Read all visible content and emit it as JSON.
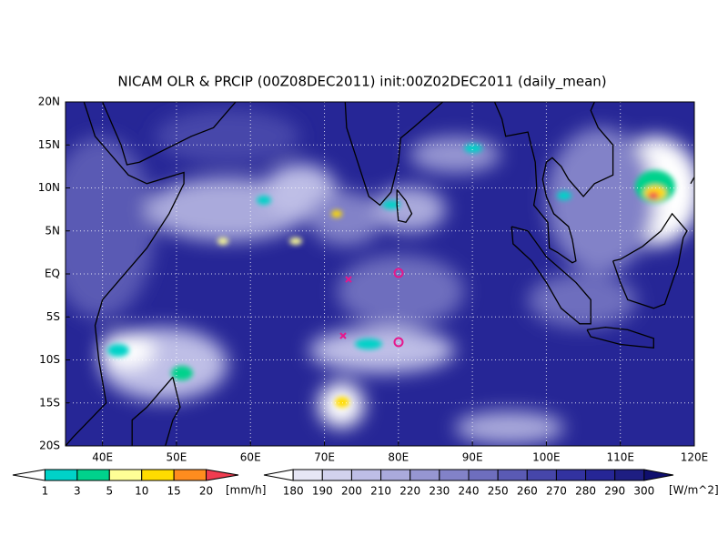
{
  "title": "NICAM OLR & PRCIP (00Z08DEC2011) init:00Z02DEC2011 (daily_mean)",
  "map": {
    "lat_labels": [
      "20N",
      "15N",
      "10N",
      "5N",
      "EQ",
      "5S",
      "10S",
      "15S",
      "20S"
    ],
    "lon_labels": [
      "40E",
      "50E",
      "60E",
      "70E",
      "80E",
      "90E",
      "100E",
      "110E",
      "120E"
    ]
  },
  "precip_scale": {
    "levels": [
      1,
      3,
      5,
      10,
      15,
      20
    ],
    "unit": "[mm/h]",
    "colors": [
      "#ffffff",
      "#00d2c8",
      "#00d28c",
      "#ffff96",
      "#ffdc00",
      "#ff8c1e",
      "#f03c50"
    ]
  },
  "olr_scale": {
    "levels": [
      180,
      190,
      200,
      210,
      220,
      230,
      240,
      250,
      260,
      270,
      280,
      290,
      300
    ],
    "unit": "[W/m^2]",
    "colors": [
      "#ffffff",
      "#e6e6f5",
      "#d2d2ee",
      "#bebee6",
      "#aaaadc",
      "#9696d2",
      "#8282c8",
      "#6e6ebe",
      "#5a5ab4",
      "#4646aa",
      "#3232a0",
      "#262696",
      "#1e1e82",
      "#0f0f6e"
    ]
  }
}
